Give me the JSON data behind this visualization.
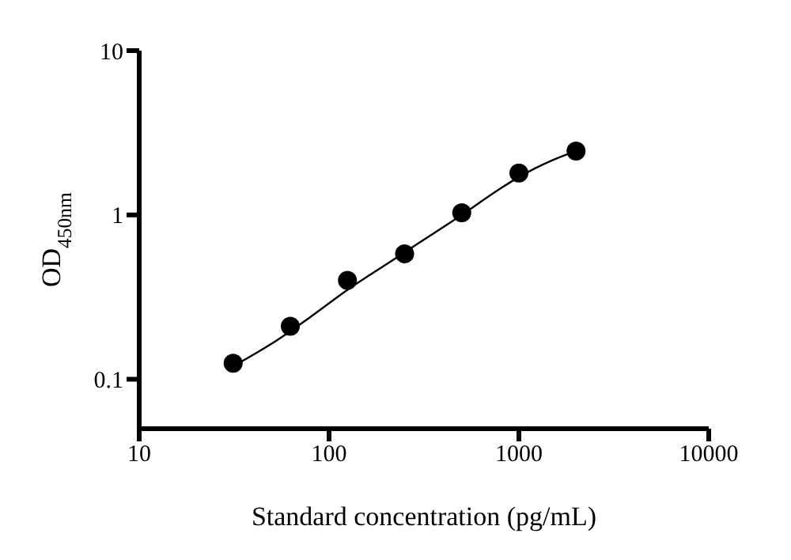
{
  "chart_data": {
    "type": "scatter",
    "xlabel": "Standard concentration (pg/mL)",
    "ylabel": "OD$_{450nm}$",
    "log": "xy",
    "xlim": [
      10,
      10000
    ],
    "xticks": [
      10,
      100,
      1000,
      10000
    ],
    "ylim": [
      0.05,
      10
    ],
    "yticks": [
      0.1,
      1,
      10
    ],
    "grid": false,
    "series": [
      {
        "color": "#000000",
        "marker": "circle",
        "x": [
          31.25,
          62.5,
          125,
          250,
          500,
          1000,
          2000
        ],
        "values": [
          0.125,
          0.21,
          0.4,
          0.58,
          1.03,
          1.8,
          2.45
        ]
      },
      {
        "type": "line",
        "color": "#000000",
        "line_style": "solid",
        "x": [
          31.25,
          50,
          80,
          125,
          200,
          300,
          500,
          800,
          1000,
          1500,
          2000
        ],
        "values": [
          0.12,
          0.165,
          0.24,
          0.35,
          0.5,
          0.68,
          1.0,
          1.45,
          1.7,
          2.15,
          2.45
        ]
      }
    ]
  }
}
